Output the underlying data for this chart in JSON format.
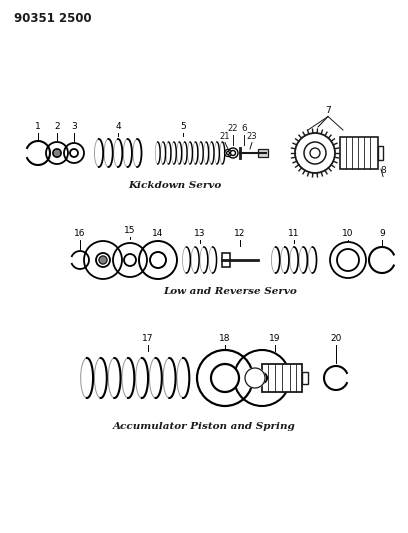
{
  "title_code": "90351 2500",
  "section1_label": "Kickdown Servo",
  "section2_label": "Low and Reverse Servo",
  "section3_label": "Accumulator Piston and Spring",
  "bg_color": "#ffffff",
  "line_color": "#1a1a1a",
  "text_color": "#1a1a1a",
  "figsize": [
    4.08,
    5.33
  ],
  "dpi": 100
}
